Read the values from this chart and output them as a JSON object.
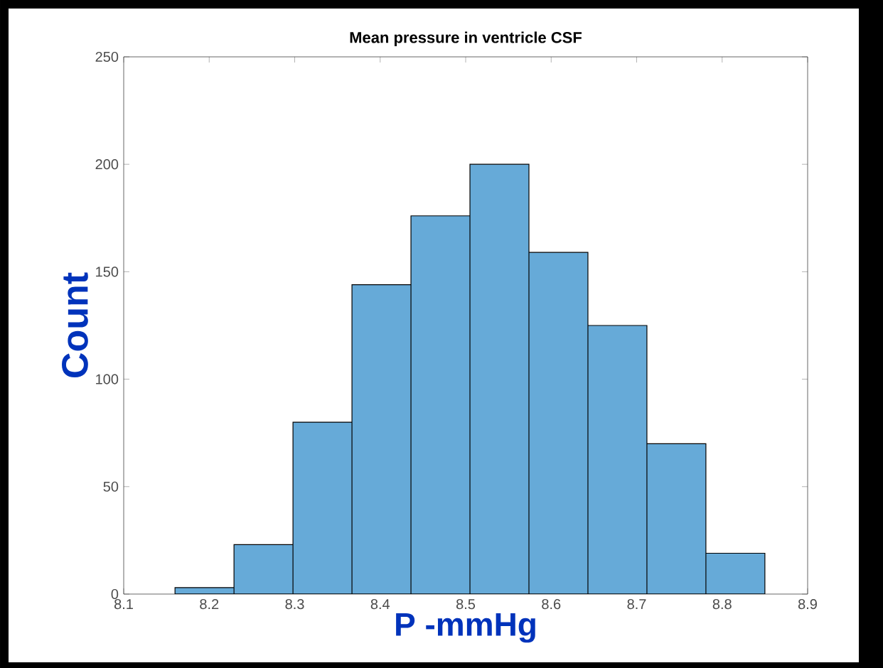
{
  "chart_data": {
    "type": "histogram",
    "title": "Mean pressure in ventricle CSF",
    "xlabel": "P -mmHg",
    "ylabel": "Count",
    "bins": [
      8.16,
      8.229,
      8.298,
      8.367,
      8.436,
      8.505,
      8.574,
      8.643,
      8.712,
      8.781,
      8.85
    ],
    "values": [
      3,
      23,
      80,
      144,
      176,
      200,
      159,
      125,
      70,
      19
    ],
    "color": "#66aad8",
    "xlim": [
      8.1,
      8.9
    ],
    "ylim": [
      0,
      250
    ],
    "xticks": [
      8.1,
      8.2,
      8.3,
      8.4,
      8.5,
      8.6,
      8.7,
      8.8,
      8.9
    ],
    "yticks": [
      0,
      50,
      100,
      150,
      200,
      250
    ]
  }
}
